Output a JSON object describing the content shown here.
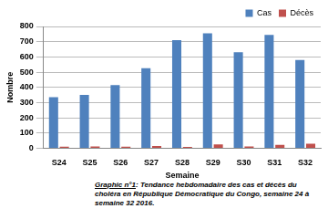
{
  "chart_data": {
    "type": "bar",
    "title": "Graphic n°1: Tendance hebdomadaire des cas et décès du choléra en République Démocratique du Congo, semaine 24 à semaine 32 2016.",
    "x_label": "Semaine",
    "y_label": "Nombre",
    "categories": [
      "S24",
      "S25",
      "S26",
      "S27",
      "S28",
      "S29",
      "S30",
      "S31",
      "S32"
    ],
    "series": [
      {
        "name": "Cas",
        "color": "#4f81bd",
        "values": [
          335,
          350,
          415,
          525,
          710,
          755,
          630,
          745,
          580
        ]
      },
      {
        "name": "Décès",
        "color": "#c0504d",
        "values": [
          10,
          12,
          10,
          15,
          8,
          25,
          12,
          22,
          30
        ]
      }
    ],
    "ylim": [
      0,
      800
    ],
    "yticks": [
      0,
      100,
      200,
      300,
      400,
      500,
      600,
      700,
      800
    ],
    "grid": true,
    "legend": "top"
  }
}
